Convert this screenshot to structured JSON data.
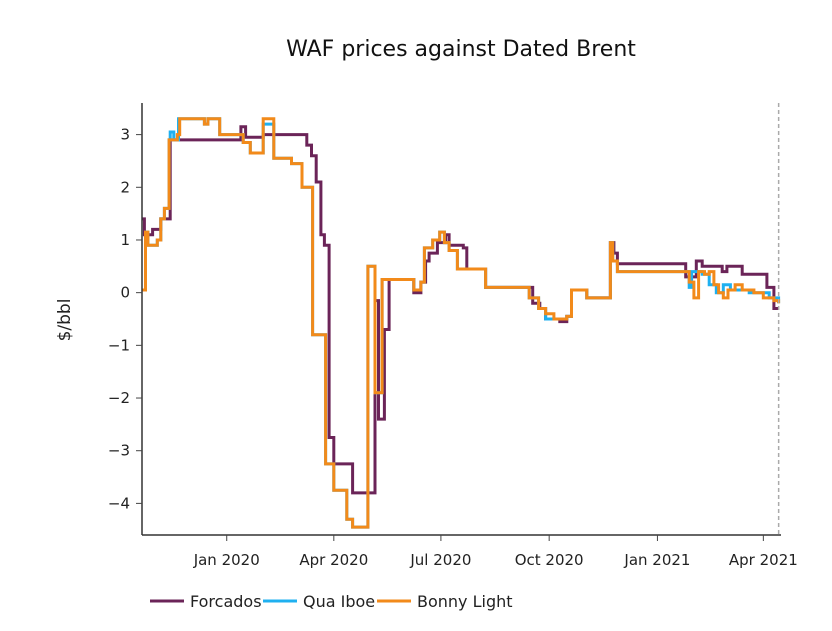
{
  "chart_data": {
    "type": "line",
    "title": "WAF prices against Dated Brent",
    "xlabel": "",
    "ylabel": "$/bbl",
    "ylim": [
      -4.6,
      3.6
    ],
    "xlim": [
      "2019-10-21",
      "2021-04-16"
    ],
    "yticks": [
      3,
      2,
      1,
      0,
      -1,
      -2,
      -3,
      -4
    ],
    "ytick_labels": [
      "3",
      "2",
      "1",
      "0",
      "−1",
      "−2",
      "−3",
      "−4"
    ],
    "xticks": [
      "2020-01-01",
      "2020-04-01",
      "2020-07-01",
      "2020-10-01",
      "2021-01-01",
      "2021-04-01"
    ],
    "xtick_labels": [
      "Jan 2020",
      "Apr 2020",
      "Jul 2020",
      "Oct 2020",
      "Jan 2021",
      "Apr 2021"
    ],
    "grid": false,
    "legend_position": "bottom-left",
    "reference_line": {
      "date": "2021-04-14",
      "style": "dashed",
      "color": "#aaaaaa"
    },
    "series": [
      {
        "name": "Forcados",
        "color": "#6b2458",
        "points": [
          [
            "2019-10-21",
            1.4
          ],
          [
            "2019-10-23",
            1.1
          ],
          [
            "2019-10-30",
            1.2
          ],
          [
            "2019-11-06",
            1.4
          ],
          [
            "2019-11-12",
            1.4
          ],
          [
            "2019-11-14",
            2.9
          ],
          [
            "2020-01-10",
            2.9
          ],
          [
            "2020-01-13",
            3.15
          ],
          [
            "2020-01-17",
            2.95
          ],
          [
            "2020-02-01",
            3.0
          ],
          [
            "2020-03-06",
            3.0
          ],
          [
            "2020-03-09",
            2.8
          ],
          [
            "2020-03-13",
            2.6
          ],
          [
            "2020-03-17",
            2.1
          ],
          [
            "2020-03-21",
            1.1
          ],
          [
            "2020-03-24",
            0.9
          ],
          [
            "2020-03-28",
            -2.75
          ],
          [
            "2020-04-01",
            -3.25
          ],
          [
            "2020-04-17",
            -3.8
          ],
          [
            "2020-05-02",
            -3.8
          ],
          [
            "2020-05-06",
            -0.15
          ],
          [
            "2020-05-09",
            -2.4
          ],
          [
            "2020-05-14",
            -0.7
          ],
          [
            "2020-05-18",
            0.25
          ],
          [
            "2020-06-04",
            0.25
          ],
          [
            "2020-06-08",
            0.0
          ],
          [
            "2020-06-14",
            0.2
          ],
          [
            "2020-06-18",
            0.6
          ],
          [
            "2020-06-21",
            0.75
          ],
          [
            "2020-06-28",
            0.95
          ],
          [
            "2020-07-05",
            1.1
          ],
          [
            "2020-07-08",
            0.9
          ],
          [
            "2020-07-20",
            0.85
          ],
          [
            "2020-07-23",
            0.45
          ],
          [
            "2020-08-08",
            0.1
          ],
          [
            "2020-09-10",
            0.1
          ],
          [
            "2020-09-17",
            -0.2
          ],
          [
            "2020-09-23",
            -0.3
          ],
          [
            "2020-09-28",
            -0.5
          ],
          [
            "2020-10-10",
            -0.55
          ],
          [
            "2020-10-16",
            -0.45
          ],
          [
            "2020-10-20",
            0.05
          ],
          [
            "2020-10-28",
            0.05
          ],
          [
            "2020-11-02",
            -0.1
          ],
          [
            "2020-11-20",
            -0.1
          ],
          [
            "2020-11-22",
            0.95
          ],
          [
            "2020-11-25",
            0.75
          ],
          [
            "2020-11-28",
            0.55
          ],
          [
            "2021-01-22",
            0.55
          ],
          [
            "2021-01-25",
            0.3
          ],
          [
            "2021-02-03",
            0.6
          ],
          [
            "2021-02-08",
            0.5
          ],
          [
            "2021-02-25",
            0.4
          ],
          [
            "2021-03-01",
            0.5
          ],
          [
            "2021-03-14",
            0.35
          ],
          [
            "2021-04-04",
            0.1
          ],
          [
            "2021-04-10",
            -0.3
          ],
          [
            "2021-04-14",
            -0.3
          ]
        ]
      },
      {
        "name": "Qua Iboe",
        "color": "#1fb0f0",
        "points": [
          [
            "2019-10-21",
            0.05
          ],
          [
            "2019-10-24",
            1.15
          ],
          [
            "2019-10-26",
            0.9
          ],
          [
            "2019-11-03",
            1.0
          ],
          [
            "2019-11-06",
            1.4
          ],
          [
            "2019-11-09",
            1.6
          ],
          [
            "2019-11-13",
            2.9
          ],
          [
            "2019-11-14",
            3.05
          ],
          [
            "2019-11-17",
            2.9
          ],
          [
            "2019-11-21",
            3.3
          ],
          [
            "2019-12-10",
            3.3
          ],
          [
            "2019-12-13",
            3.2
          ],
          [
            "2019-12-16",
            3.3
          ],
          [
            "2019-12-26",
            3.0
          ],
          [
            "2020-01-15",
            2.85
          ],
          [
            "2020-01-21",
            2.65
          ],
          [
            "2020-02-01",
            3.2
          ],
          [
            "2020-02-10",
            2.55
          ],
          [
            "2020-02-25",
            2.45
          ],
          [
            "2020-03-05",
            2.0
          ],
          [
            "2020-03-14",
            -0.8
          ],
          [
            "2020-03-25",
            -3.25
          ],
          [
            "2020-04-01",
            -3.75
          ],
          [
            "2020-04-12",
            -4.3
          ],
          [
            "2020-04-17",
            -4.45
          ],
          [
            "2020-04-30",
            0.5
          ],
          [
            "2020-05-06",
            -1.9
          ],
          [
            "2020-05-12",
            0.25
          ],
          [
            "2020-06-04",
            0.25
          ],
          [
            "2020-06-08",
            0.05
          ],
          [
            "2020-06-14",
            0.2
          ],
          [
            "2020-06-17",
            0.85
          ],
          [
            "2020-06-24",
            1.0
          ],
          [
            "2020-06-30",
            1.15
          ],
          [
            "2020-07-04",
            0.95
          ],
          [
            "2020-07-08",
            0.8
          ],
          [
            "2020-07-15",
            0.45
          ],
          [
            "2020-08-08",
            0.1
          ],
          [
            "2020-09-14",
            -0.1
          ],
          [
            "2020-09-22",
            -0.3
          ],
          [
            "2020-09-28",
            -0.5
          ],
          [
            "2020-10-05",
            -0.5
          ],
          [
            "2020-10-16",
            -0.45
          ],
          [
            "2020-10-20",
            0.05
          ],
          [
            "2020-10-28",
            0.05
          ],
          [
            "2020-11-02",
            -0.1
          ],
          [
            "2020-11-20",
            -0.1
          ],
          [
            "2020-11-22",
            0.95
          ],
          [
            "2020-11-24",
            0.6
          ],
          [
            "2020-11-28",
            0.4
          ],
          [
            "2021-01-24",
            0.4
          ],
          [
            "2021-01-28",
            0.1
          ],
          [
            "2021-01-30",
            0.4
          ],
          [
            "2021-02-08",
            0.35
          ],
          [
            "2021-02-14",
            0.15
          ],
          [
            "2021-02-20",
            0.0
          ],
          [
            "2021-02-26",
            0.15
          ],
          [
            "2021-03-04",
            0.05
          ],
          [
            "2021-03-20",
            0.0
          ],
          [
            "2021-04-06",
            -0.1
          ],
          [
            "2021-04-14",
            -0.2
          ]
        ]
      },
      {
        "name": "Bonny Light",
        "color": "#f28a1a",
        "points": [
          [
            "2019-10-21",
            0.05
          ],
          [
            "2019-10-24",
            1.15
          ],
          [
            "2019-10-26",
            0.9
          ],
          [
            "2019-11-03",
            1.0
          ],
          [
            "2019-11-06",
            1.4
          ],
          [
            "2019-11-09",
            1.6
          ],
          [
            "2019-11-13",
            2.9
          ],
          [
            "2019-11-20",
            3.0
          ],
          [
            "2019-11-22",
            3.3
          ],
          [
            "2019-12-10",
            3.3
          ],
          [
            "2019-12-13",
            3.2
          ],
          [
            "2019-12-16",
            3.3
          ],
          [
            "2019-12-26",
            3.0
          ],
          [
            "2020-01-15",
            2.85
          ],
          [
            "2020-01-21",
            2.65
          ],
          [
            "2020-02-01",
            3.3
          ],
          [
            "2020-02-10",
            2.55
          ],
          [
            "2020-02-25",
            2.45
          ],
          [
            "2020-03-05",
            2.0
          ],
          [
            "2020-03-14",
            -0.8
          ],
          [
            "2020-03-25",
            -3.25
          ],
          [
            "2020-04-01",
            -3.75
          ],
          [
            "2020-04-12",
            -4.3
          ],
          [
            "2020-04-17",
            -4.45
          ],
          [
            "2020-04-30",
            0.5
          ],
          [
            "2020-05-06",
            -1.9
          ],
          [
            "2020-05-12",
            0.25
          ],
          [
            "2020-06-04",
            0.25
          ],
          [
            "2020-06-08",
            0.05
          ],
          [
            "2020-06-14",
            0.2
          ],
          [
            "2020-06-17",
            0.85
          ],
          [
            "2020-06-24",
            1.0
          ],
          [
            "2020-06-30",
            1.15
          ],
          [
            "2020-07-04",
            0.95
          ],
          [
            "2020-07-08",
            0.8
          ],
          [
            "2020-07-15",
            0.45
          ],
          [
            "2020-08-08",
            0.1
          ],
          [
            "2020-09-14",
            -0.1
          ],
          [
            "2020-09-22",
            -0.3
          ],
          [
            "2020-09-28",
            -0.4
          ],
          [
            "2020-10-05",
            -0.5
          ],
          [
            "2020-10-16",
            -0.45
          ],
          [
            "2020-10-20",
            0.05
          ],
          [
            "2020-10-28",
            0.05
          ],
          [
            "2020-11-02",
            -0.1
          ],
          [
            "2020-11-20",
            -0.1
          ],
          [
            "2020-11-22",
            0.95
          ],
          [
            "2020-11-24",
            0.6
          ],
          [
            "2020-11-28",
            0.4
          ],
          [
            "2021-01-24",
            0.4
          ],
          [
            "2021-01-28",
            0.2
          ],
          [
            "2021-02-01",
            -0.1
          ],
          [
            "2021-02-05",
            0.4
          ],
          [
            "2021-02-10",
            0.35
          ],
          [
            "2021-02-14",
            0.4
          ],
          [
            "2021-02-18",
            0.15
          ],
          [
            "2021-02-22",
            0.0
          ],
          [
            "2021-02-26",
            -0.1
          ],
          [
            "2021-03-02",
            0.05
          ],
          [
            "2021-03-08",
            0.15
          ],
          [
            "2021-03-14",
            0.05
          ],
          [
            "2021-03-24",
            0.0
          ],
          [
            "2021-04-01",
            -0.1
          ],
          [
            "2021-04-10",
            -0.15
          ],
          [
            "2021-04-14",
            -0.2
          ]
        ]
      }
    ]
  }
}
